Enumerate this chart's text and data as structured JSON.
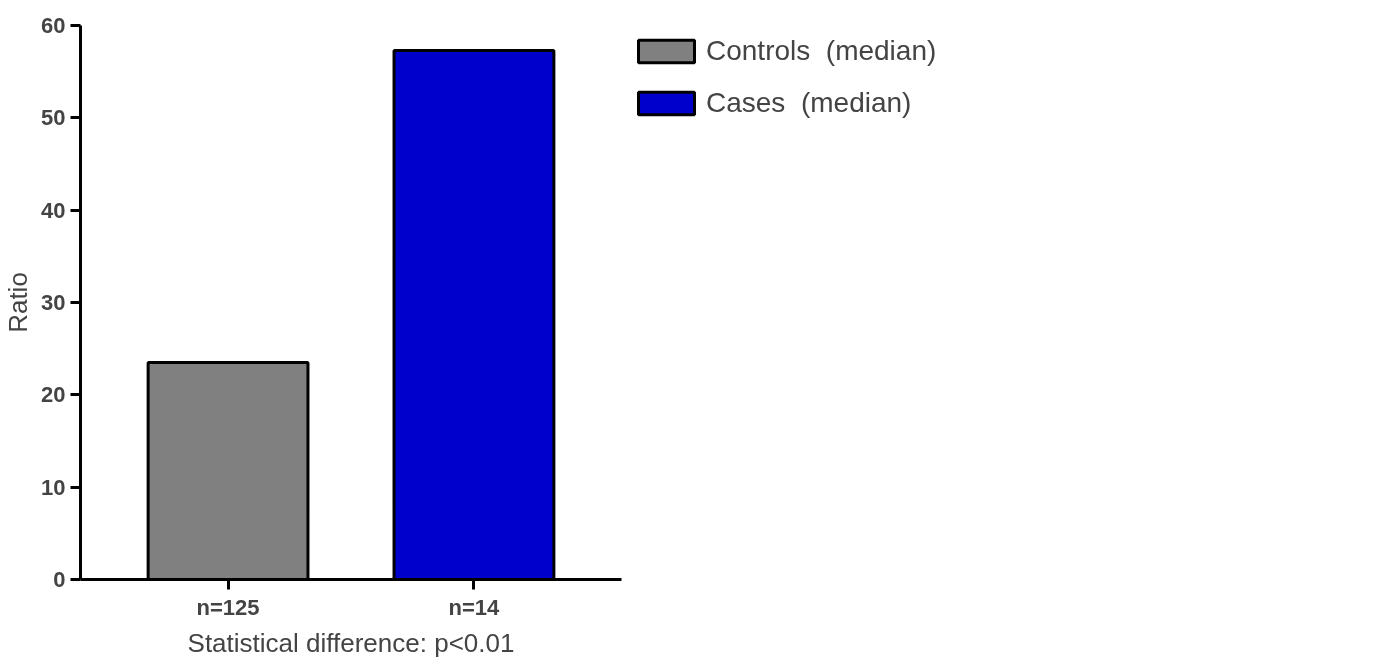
{
  "chart_data": {
    "type": "bar",
    "categories": [
      "n=125",
      "n=14"
    ],
    "series": [
      {
        "name": "Controls  (median)",
        "color": "#808080",
        "values": [
          23.5,
          null
        ]
      },
      {
        "name": "Cases  (median)",
        "color": "#0000cc",
        "values": [
          null,
          57.3
        ]
      }
    ],
    "xlabel": "Statistical difference: p<0.01",
    "ylabel": "Ratio",
    "ylim": [
      0,
      60
    ],
    "yticks": [
      0,
      10,
      20,
      30,
      40,
      50,
      60
    ],
    "grid": false,
    "legend": "top right"
  }
}
